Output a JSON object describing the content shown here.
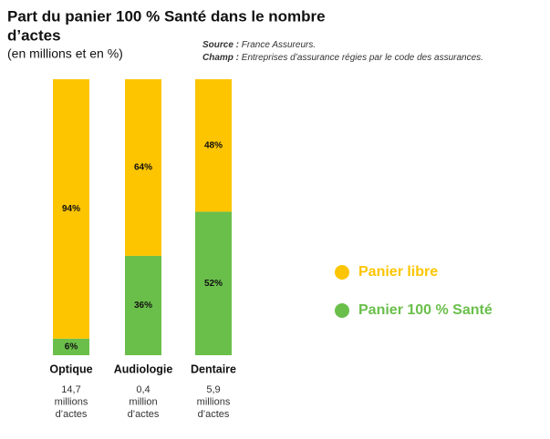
{
  "chart_data": {
    "type": "stacked_bar",
    "title": [
      "Part du panier 100 % Santé dans le nombre",
      "d’actes"
    ],
    "subtitle": "(en millions et en %)",
    "source_label": "Source :",
    "source": "France Assureurs.",
    "champ_label": "Champ :",
    "champ": "Entreprises d’assurance régies par le code des assurances.",
    "categories": [
      "Optique",
      "Audiologie",
      "Dentaire"
    ],
    "category_notes": [
      [
        "14,7",
        "millions",
        "d’actes"
      ],
      [
        "0,4",
        "million",
        "d’actes"
      ],
      [
        "5,9",
        "millions",
        "d’actes"
      ]
    ],
    "series": [
      {
        "name": "Panier 100 % Santé",
        "color": "#6abf4b",
        "values": [
          6,
          36,
          52
        ],
        "value_labels": [
          "6%",
          "36%",
          "52%"
        ]
      },
      {
        "name": "Panier libre",
        "color": "#fcc500",
        "values": [
          94,
          64,
          48
        ],
        "value_labels": [
          "94%",
          "64%",
          "48%"
        ]
      }
    ]
  }
}
